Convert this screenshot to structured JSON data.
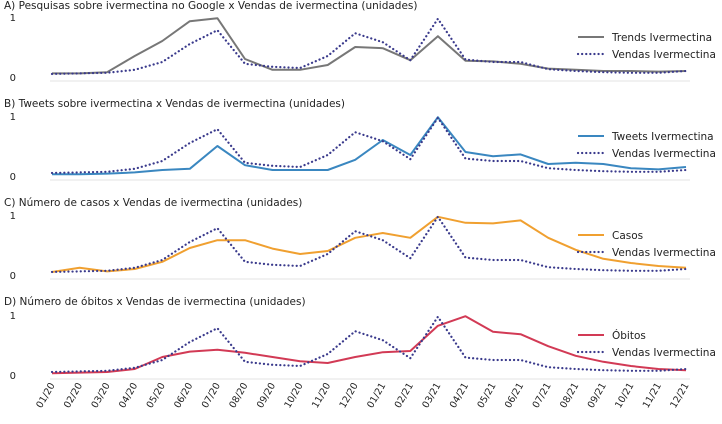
{
  "figure": {
    "x_labels": [
      "01/20",
      "02/20",
      "03/20",
      "04/20",
      "05/20",
      "06/20",
      "07/20",
      "08/20",
      "09/20",
      "10/20",
      "11/20",
      "12/20",
      "01/21",
      "02/21",
      "03/21",
      "04/21",
      "05/21",
      "06/21",
      "07/21",
      "08/21",
      "09/21",
      "10/21",
      "11/21",
      "12/21"
    ]
  },
  "chart_data": [
    {
      "type": "line",
      "title": "A) Pesquisas sobre ivermectina no Google x Vendas de ivermectina (unidades)",
      "ylim": [
        0,
        1
      ],
      "y_ticks": [
        "0",
        "1"
      ],
      "legend_position": "right",
      "series": [
        {
          "name": "Trends Ivermectina",
          "style": "solid",
          "color": "#777777",
          "values": [
            0.06,
            0.06,
            0.08,
            0.35,
            0.6,
            0.93,
            0.98,
            0.3,
            0.12,
            0.12,
            0.2,
            0.5,
            0.48,
            0.28,
            0.68,
            0.27,
            0.26,
            0.22,
            0.14,
            0.12,
            0.1,
            0.1,
            0.09,
            0.1
          ]
        },
        {
          "name": "Vendas Ivermectina",
          "style": "dotted",
          "color": "#3a3a8c",
          "values": [
            0.05,
            0.06,
            0.07,
            0.12,
            0.25,
            0.55,
            0.78,
            0.22,
            0.17,
            0.15,
            0.35,
            0.73,
            0.58,
            0.28,
            0.97,
            0.29,
            0.25,
            0.25,
            0.13,
            0.1,
            0.08,
            0.07,
            0.07,
            0.1
          ]
        }
      ]
    },
    {
      "type": "line",
      "title": "B) Tweets sobre ivermectina x Vendas de ivermectina (unidades)",
      "ylim": [
        0,
        1
      ],
      "y_ticks": [
        "0",
        "1"
      ],
      "legend_position": "right",
      "series": [
        {
          "name": "Tweets Ivermectina",
          "style": "solid",
          "color": "#3a87c0",
          "values": [
            0.03,
            0.03,
            0.04,
            0.06,
            0.1,
            0.12,
            0.5,
            0.18,
            0.1,
            0.1,
            0.1,
            0.27,
            0.6,
            0.35,
            0.98,
            0.4,
            0.33,
            0.36,
            0.2,
            0.22,
            0.2,
            0.13,
            0.11,
            0.15
          ]
        },
        {
          "name": "Vendas Ivermectina",
          "style": "dotted",
          "color": "#3a3a8c",
          "values": [
            0.05,
            0.06,
            0.07,
            0.12,
            0.25,
            0.55,
            0.78,
            0.22,
            0.17,
            0.15,
            0.35,
            0.73,
            0.58,
            0.28,
            0.97,
            0.29,
            0.25,
            0.25,
            0.13,
            0.1,
            0.08,
            0.07,
            0.07,
            0.1
          ]
        }
      ]
    },
    {
      "type": "line",
      "title": "C) Número de casos x Vendas de ivermectina (unidades)",
      "ylim": [
        0,
        1
      ],
      "y_ticks": [
        "0",
        "1"
      ],
      "legend_position": "right",
      "series": [
        {
          "name": "Casos",
          "style": "solid",
          "color": "#f0a030",
          "values": [
            0.05,
            0.12,
            0.06,
            0.1,
            0.22,
            0.45,
            0.58,
            0.58,
            0.44,
            0.35,
            0.4,
            0.62,
            0.7,
            0.62,
            0.97,
            0.87,
            0.86,
            0.91,
            0.62,
            0.42,
            0.27,
            0.2,
            0.15,
            0.12
          ]
        },
        {
          "name": "Vendas Ivermectina",
          "style": "dotted",
          "color": "#3a3a8c",
          "values": [
            0.05,
            0.06,
            0.07,
            0.12,
            0.25,
            0.55,
            0.78,
            0.22,
            0.17,
            0.15,
            0.35,
            0.73,
            0.58,
            0.28,
            0.97,
            0.29,
            0.25,
            0.25,
            0.13,
            0.1,
            0.08,
            0.07,
            0.07,
            0.1
          ]
        }
      ]
    },
    {
      "type": "line",
      "title": "D) Número de óbitos x Vendas de ivermectina (unidades)",
      "ylim": [
        0,
        1
      ],
      "y_ticks": [
        "0",
        "1"
      ],
      "legend_position": "right",
      "series": [
        {
          "name": "Óbitos",
          "style": "solid",
          "color": "#d23a55",
          "values": [
            0.03,
            0.04,
            0.05,
            0.1,
            0.3,
            0.39,
            0.42,
            0.37,
            0.3,
            0.23,
            0.2,
            0.3,
            0.38,
            0.4,
            0.82,
            0.98,
            0.72,
            0.68,
            0.48,
            0.32,
            0.22,
            0.15,
            0.1,
            0.08
          ]
        },
        {
          "name": "Vendas Ivermectina",
          "style": "dotted",
          "color": "#3a3a8c",
          "values": [
            0.05,
            0.06,
            0.07,
            0.12,
            0.25,
            0.55,
            0.78,
            0.22,
            0.17,
            0.15,
            0.35,
            0.73,
            0.58,
            0.28,
            0.97,
            0.29,
            0.25,
            0.25,
            0.13,
            0.1,
            0.08,
            0.07,
            0.07,
            0.1
          ]
        }
      ]
    }
  ]
}
